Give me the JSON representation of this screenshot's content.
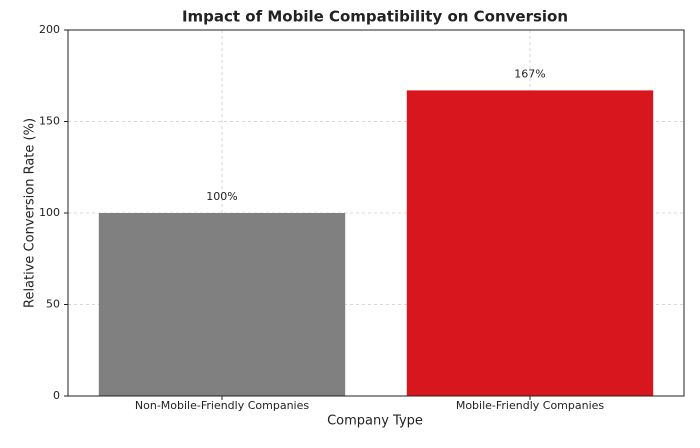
{
  "chart_data": {
    "type": "bar",
    "title": "Impact of Mobile Compatibility on Conversion",
    "x_label": "Company Type",
    "y_label": "Relative Conversion Rate (%)",
    "categories": [
      "Non-Mobile-Friendly Companies",
      "Mobile-Friendly Companies"
    ],
    "values": [
      100,
      167
    ],
    "value_labels": [
      "100%",
      "167%"
    ],
    "colors": [
      "#808080",
      "#d7161e"
    ],
    "ylim": [
      0,
      200
    ],
    "yticks": [
      0,
      50,
      100,
      150,
      200
    ],
    "grid": true
  }
}
